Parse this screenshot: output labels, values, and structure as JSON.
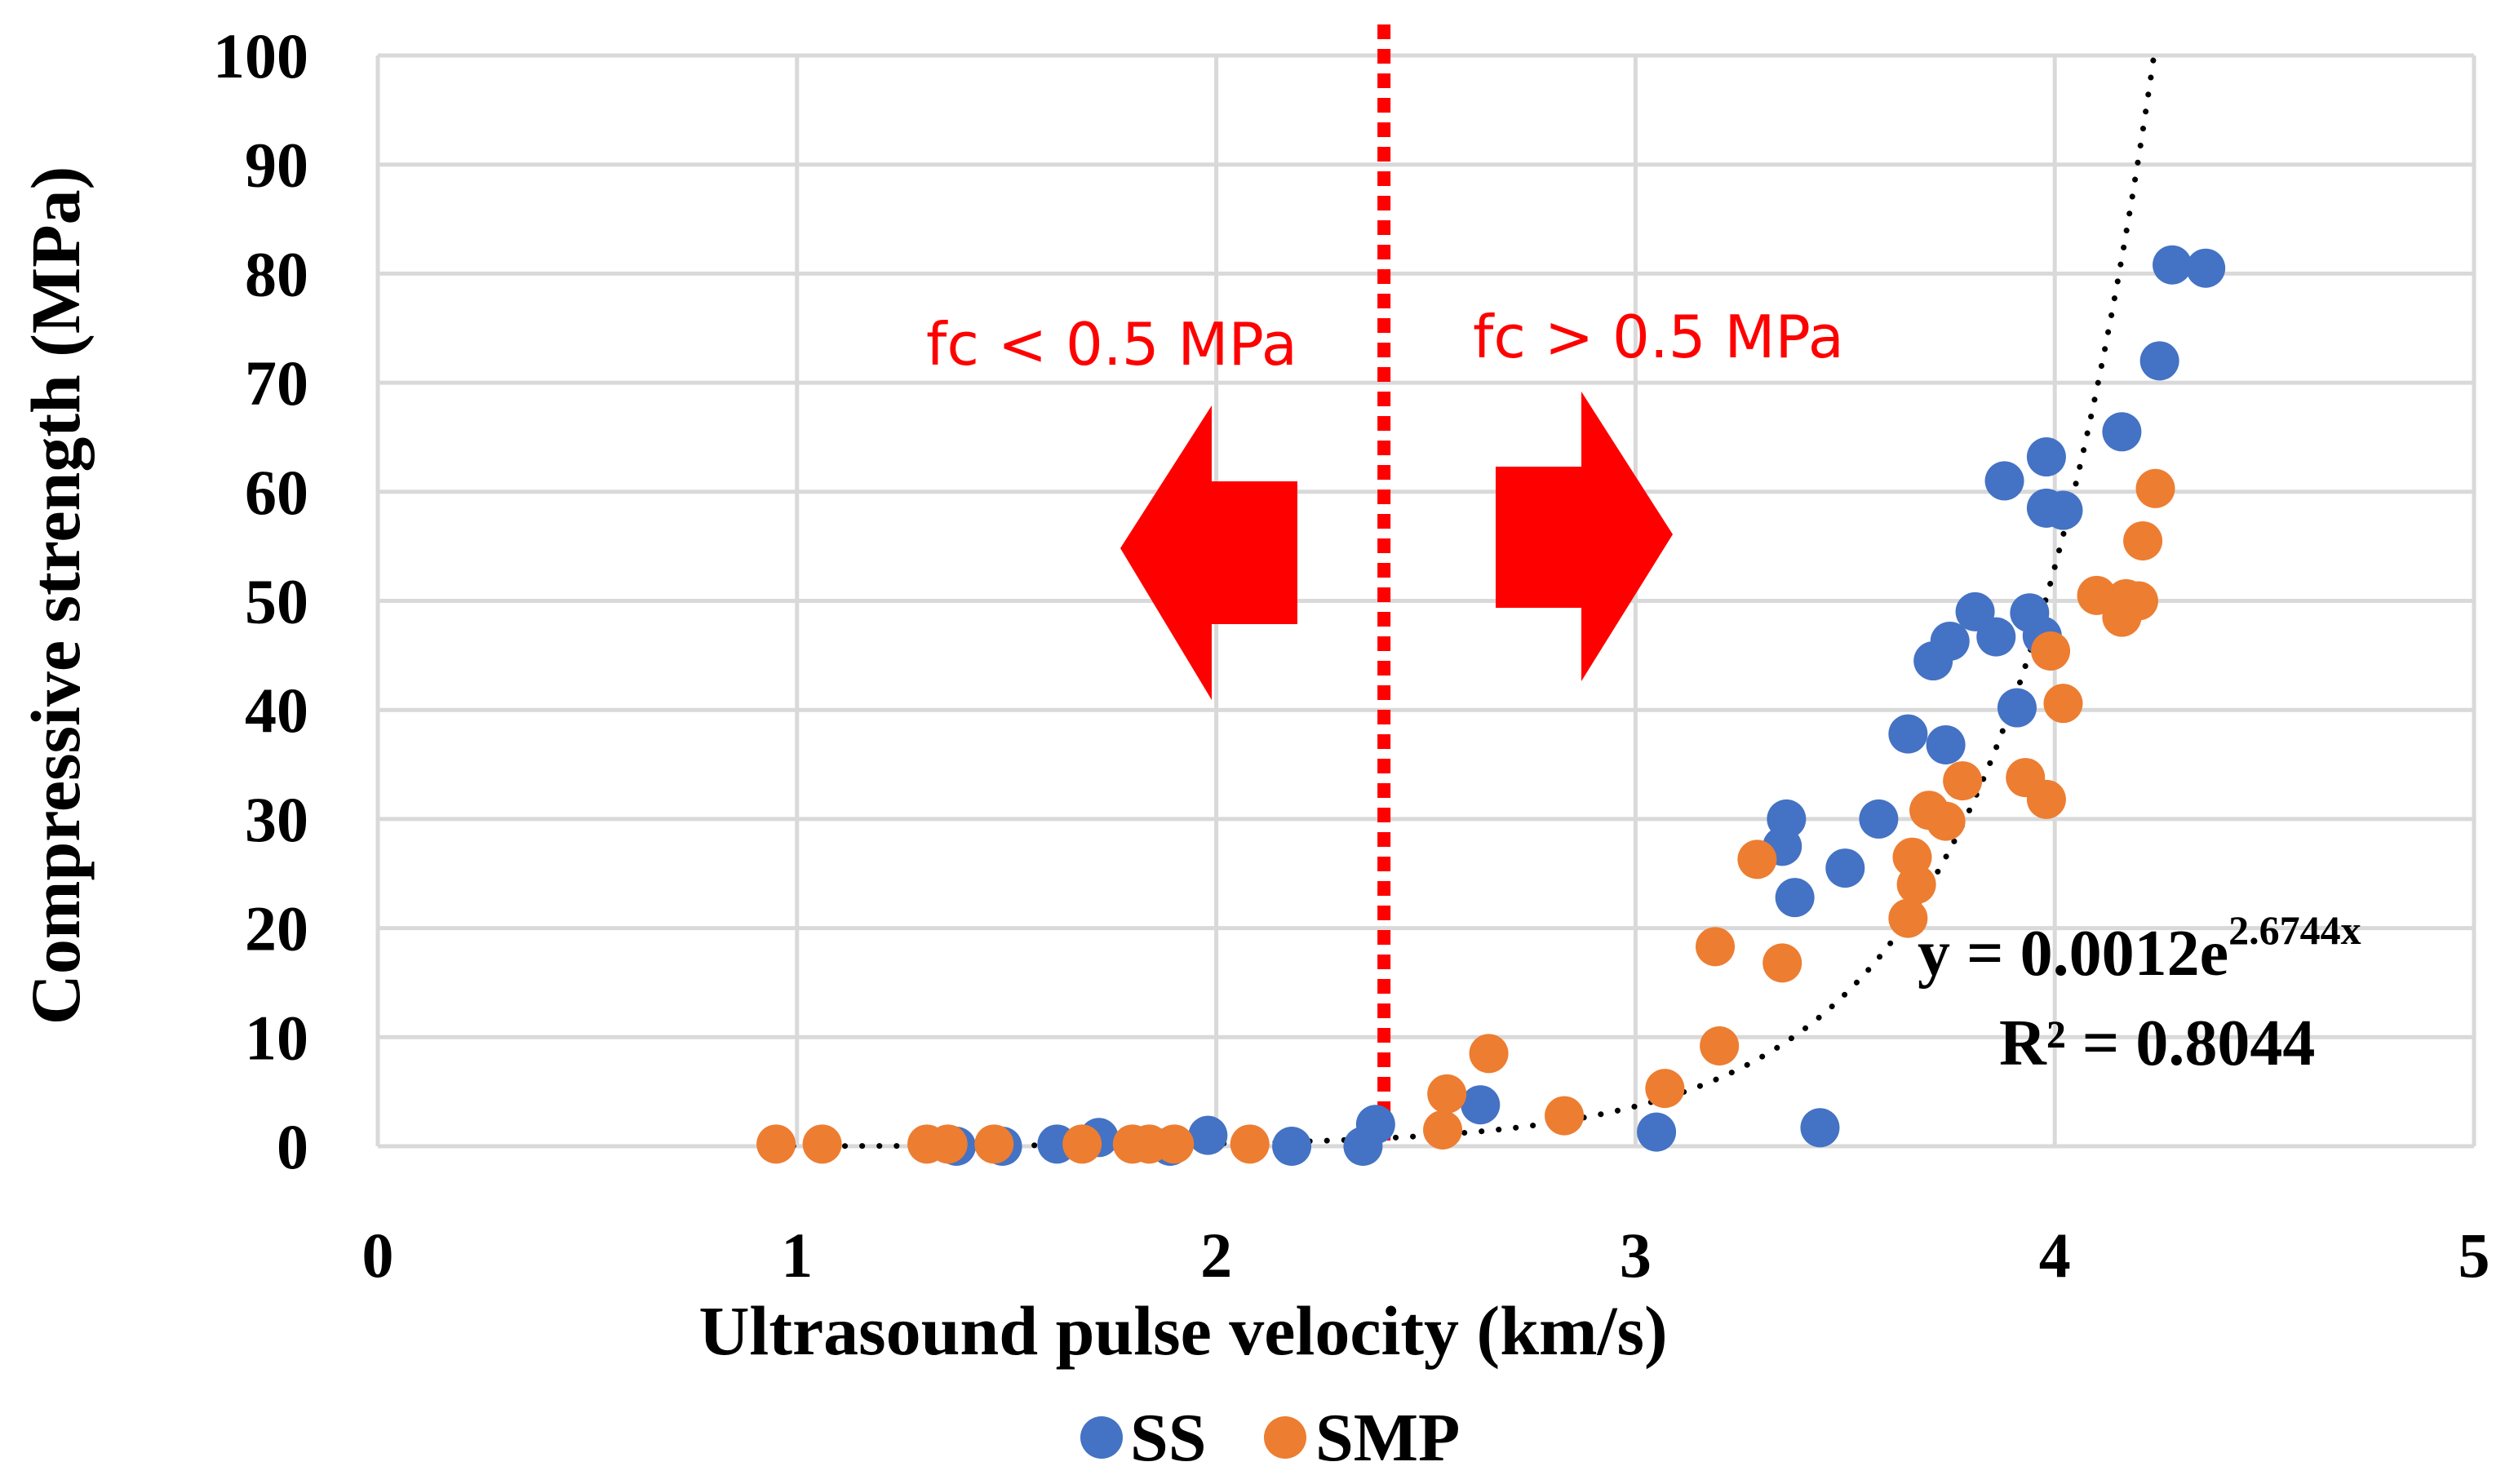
{
  "chart_data": {
    "type": "scatter",
    "xlabel": "Ultrasound pulse velocity (km/s)",
    "ylabel": "Compressive strength (MPa)",
    "xlim": [
      0,
      5
    ],
    "ylim": [
      0,
      100
    ],
    "xticks": [
      "0",
      "1",
      "2",
      "3",
      "4",
      "5"
    ],
    "yticks": [
      "0",
      "10",
      "20",
      "30",
      "40",
      "50",
      "60",
      "70",
      "80",
      "90",
      "100"
    ],
    "grid": true,
    "legend_position": "bottom",
    "series": [
      {
        "name": "SS",
        "color": "#4472c4",
        "points": [
          [
            1.38,
            0.0
          ],
          [
            1.49,
            0.0
          ],
          [
            1.62,
            0.2
          ],
          [
            1.72,
            0.8
          ],
          [
            1.89,
            0.0
          ],
          [
            1.98,
            1.0
          ],
          [
            2.18,
            0.0
          ],
          [
            2.35,
            0.0
          ],
          [
            2.38,
            2.0
          ],
          [
            2.63,
            3.8
          ],
          [
            3.05,
            1.3
          ],
          [
            3.35,
            27.5
          ],
          [
            3.36,
            30.0
          ],
          [
            3.38,
            22.8
          ],
          [
            3.44,
            1.7
          ],
          [
            3.5,
            25.5
          ],
          [
            3.58,
            30.0
          ],
          [
            3.65,
            37.8
          ],
          [
            3.71,
            44.5
          ],
          [
            3.74,
            36.8
          ],
          [
            3.75,
            46.3
          ],
          [
            3.81,
            49.0
          ],
          [
            3.86,
            46.7
          ],
          [
            3.88,
            61.0
          ],
          [
            3.91,
            40.2
          ],
          [
            3.94,
            48.9
          ],
          [
            3.97,
            46.8
          ],
          [
            3.98,
            58.5
          ],
          [
            3.98,
            63.2
          ],
          [
            4.02,
            58.3
          ],
          [
            4.16,
            65.5
          ],
          [
            4.25,
            72.0
          ],
          [
            4.28,
            80.8
          ],
          [
            4.36,
            80.5
          ]
        ]
      },
      {
        "name": "SMP",
        "color": "#ed7d31",
        "points": [
          [
            0.95,
            0.2
          ],
          [
            1.06,
            0.2
          ],
          [
            1.31,
            0.2
          ],
          [
            1.36,
            0.2
          ],
          [
            1.47,
            0.2
          ],
          [
            1.68,
            0.2
          ],
          [
            1.8,
            0.2
          ],
          [
            1.84,
            0.2
          ],
          [
            1.9,
            0.2
          ],
          [
            2.08,
            0.2
          ],
          [
            2.54,
            1.5
          ],
          [
            2.55,
            4.8
          ],
          [
            2.65,
            8.5
          ],
          [
            2.83,
            2.8
          ],
          [
            3.07,
            5.3
          ],
          [
            3.19,
            18.3
          ],
          [
            3.2,
            9.2
          ],
          [
            3.29,
            26.3
          ],
          [
            3.35,
            16.8
          ],
          [
            3.65,
            20.9
          ],
          [
            3.66,
            26.5
          ],
          [
            3.67,
            24.0
          ],
          [
            3.7,
            30.8
          ],
          [
            3.74,
            29.8
          ],
          [
            3.78,
            33.5
          ],
          [
            3.93,
            33.8
          ],
          [
            3.98,
            31.8
          ],
          [
            3.99,
            45.4
          ],
          [
            4.02,
            40.6
          ],
          [
            4.1,
            50.5
          ],
          [
            4.16,
            48.5
          ],
          [
            4.17,
            50.2
          ],
          [
            4.2,
            50.0
          ],
          [
            4.21,
            55.5
          ],
          [
            4.24,
            60.3
          ]
        ]
      }
    ],
    "trendline": {
      "type": "exponential",
      "a": 0.0012,
      "b": 2.6744,
      "x_from": 0.95,
      "color": "#000000"
    },
    "threshold": {
      "x": 2.4,
      "color": "#ff0000"
    },
    "annotations": {
      "left": "fc < 0.5 MPa",
      "right": "fc > 0.5 MPa",
      "equation_main": "y = 0.0012e",
      "equation_exp": "2.6744x",
      "r_squared": "R² = 0.8044"
    },
    "legend": [
      {
        "name": "SS",
        "color": "#4472c4"
      },
      {
        "name": "SMP",
        "color": "#ed7d31"
      }
    ]
  }
}
